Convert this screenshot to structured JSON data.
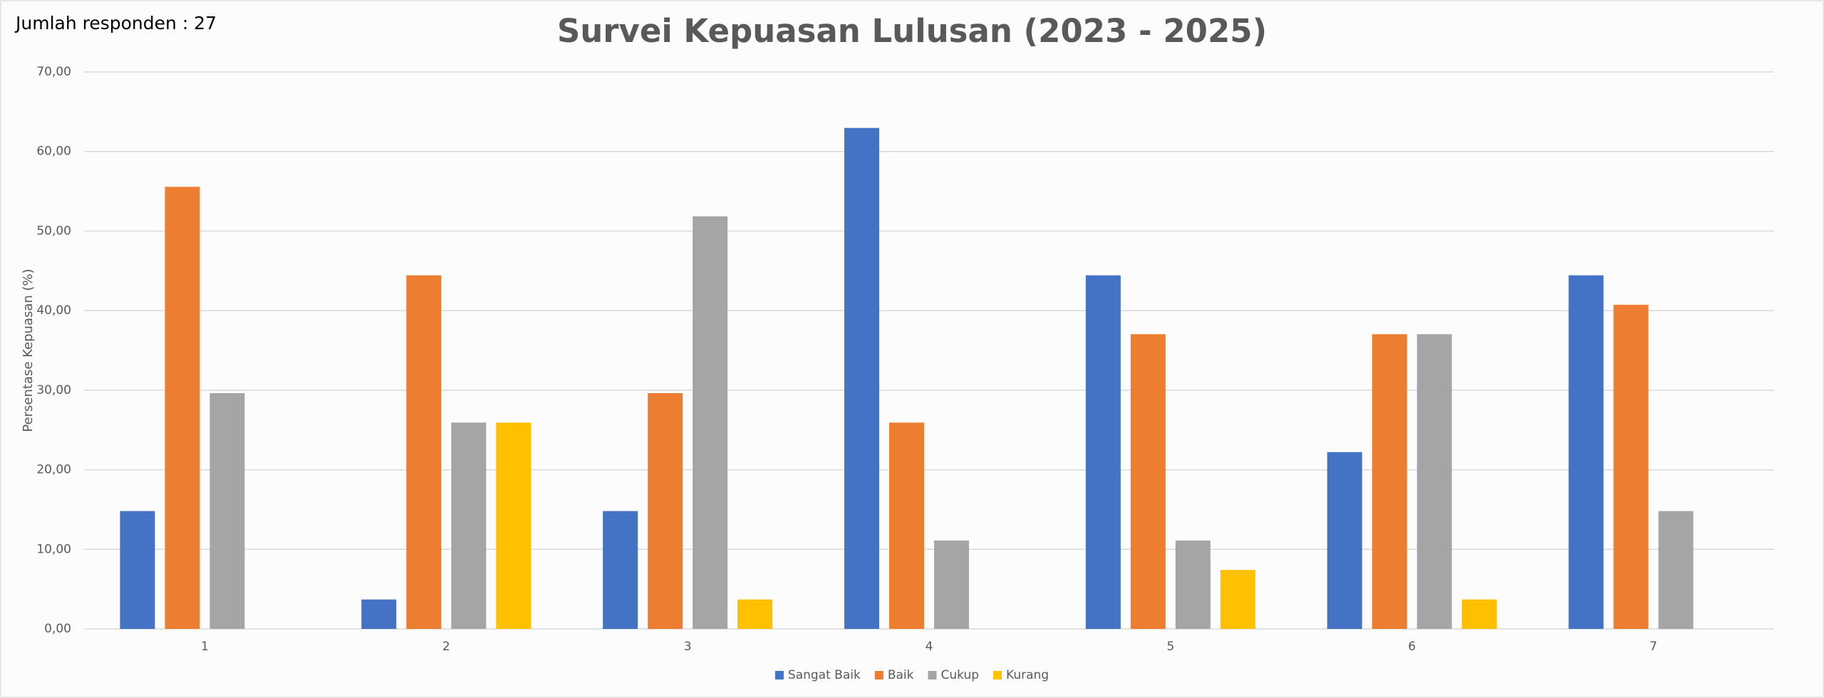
{
  "chart_data": {
    "type": "bar",
    "title": "Survei Kepuasan Lulusan (2023 - 2025)",
    "annotation": "Jumlah responden : 27",
    "ylabel": "Persentase Kepuasan (%)",
    "categories": [
      "1",
      "2",
      "3",
      "4",
      "5",
      "6",
      "7"
    ],
    "series": [
      {
        "name": "Sangat Baik",
        "color": "#4472c4",
        "values": [
          14.81,
          3.7,
          14.81,
          62.96,
          44.44,
          22.22,
          44.44
        ]
      },
      {
        "name": "Baik",
        "color": "#ed7d31",
        "values": [
          55.56,
          44.44,
          29.63,
          25.93,
          37.04,
          37.04,
          40.74
        ]
      },
      {
        "name": "Cukup",
        "color": "#a5a5a5",
        "values": [
          29.63,
          25.93,
          51.85,
          11.11,
          11.11,
          37.04,
          14.81
        ]
      },
      {
        "name": "Kurang",
        "color": "#ffc000",
        "values": [
          0,
          25.93,
          3.7,
          0,
          7.41,
          3.7,
          0
        ]
      }
    ],
    "ylim": [
      0,
      70
    ],
    "yticks": [
      {
        "value": 0,
        "label": "0,00"
      },
      {
        "value": 10,
        "label": "10,00"
      },
      {
        "value": 20,
        "label": "20,00"
      },
      {
        "value": 30,
        "label": "30,00"
      },
      {
        "value": 40,
        "label": "40,00"
      },
      {
        "value": 50,
        "label": "50,00"
      },
      {
        "value": 60,
        "label": "60,00"
      },
      {
        "value": 70,
        "label": "70,00"
      }
    ],
    "grid": true,
    "legend": "bottom"
  }
}
